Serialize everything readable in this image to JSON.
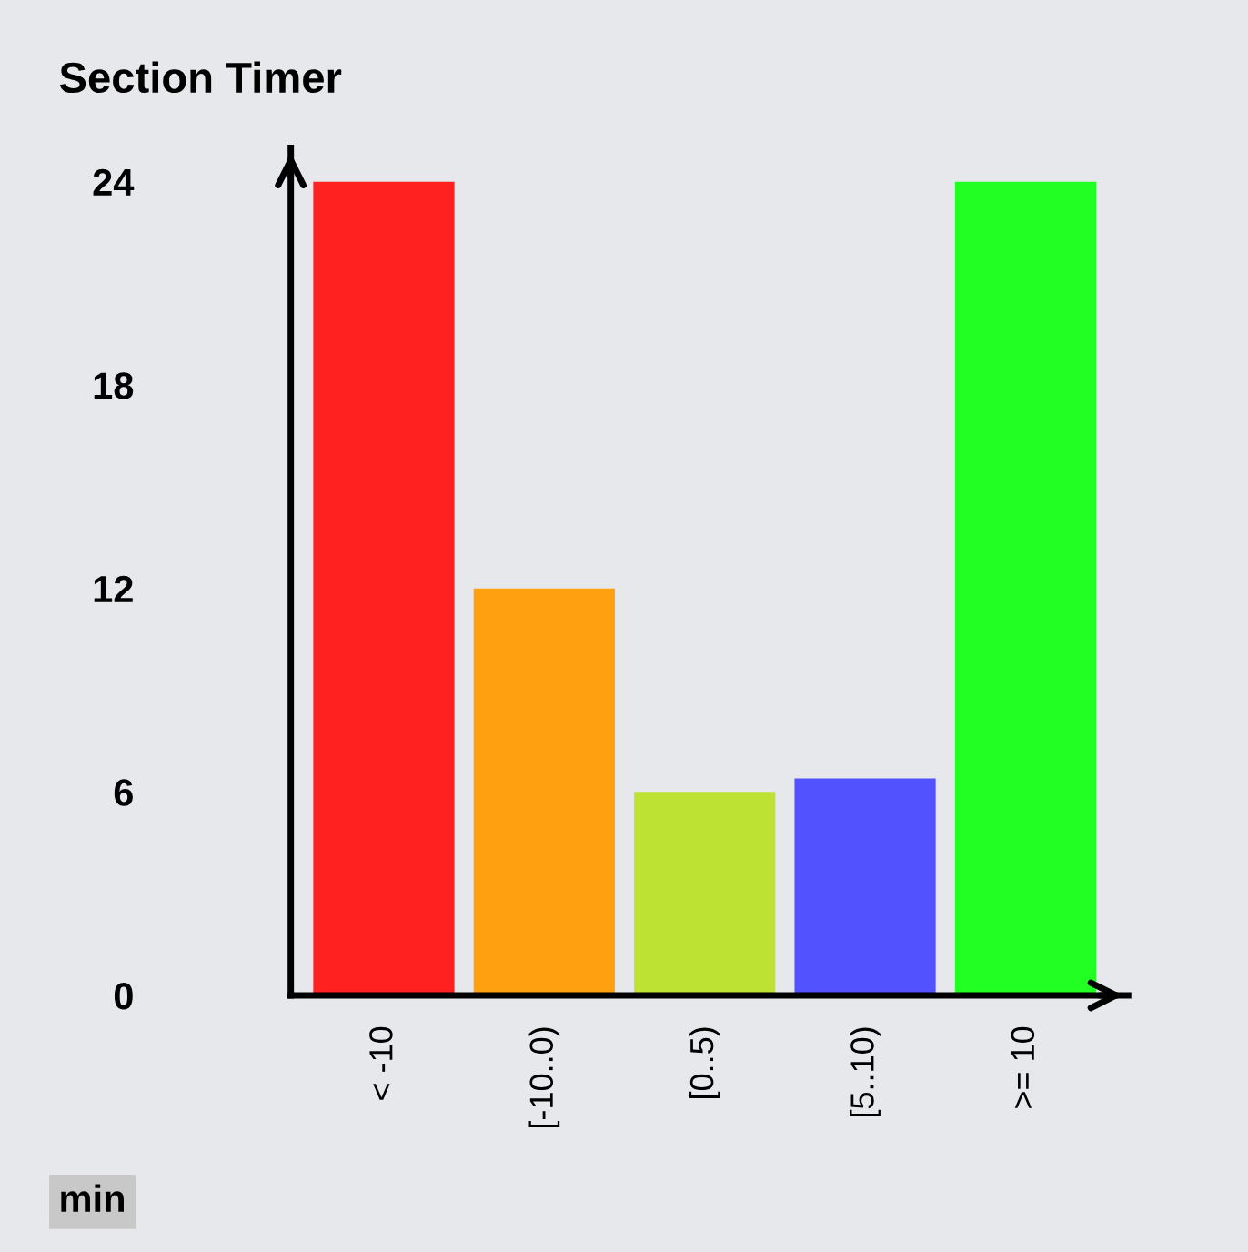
{
  "chart_data": {
    "type": "bar",
    "title": "Section Timer",
    "categories": [
      "< -10",
      "[-10..0)",
      "[0..5)",
      "[5..10)",
      ">= 10"
    ],
    "values": [
      24,
      12,
      6,
      6.4,
      24
    ],
    "colors": [
      "#ff2020",
      "#ffa010",
      "#bde234",
      "#5252ff",
      "#22ff22"
    ],
    "ylim": [
      0,
      25
    ],
    "yticks": [
      0,
      6,
      12,
      18,
      24
    ],
    "grid": false,
    "legend": false,
    "annotations": [
      "min"
    ]
  }
}
